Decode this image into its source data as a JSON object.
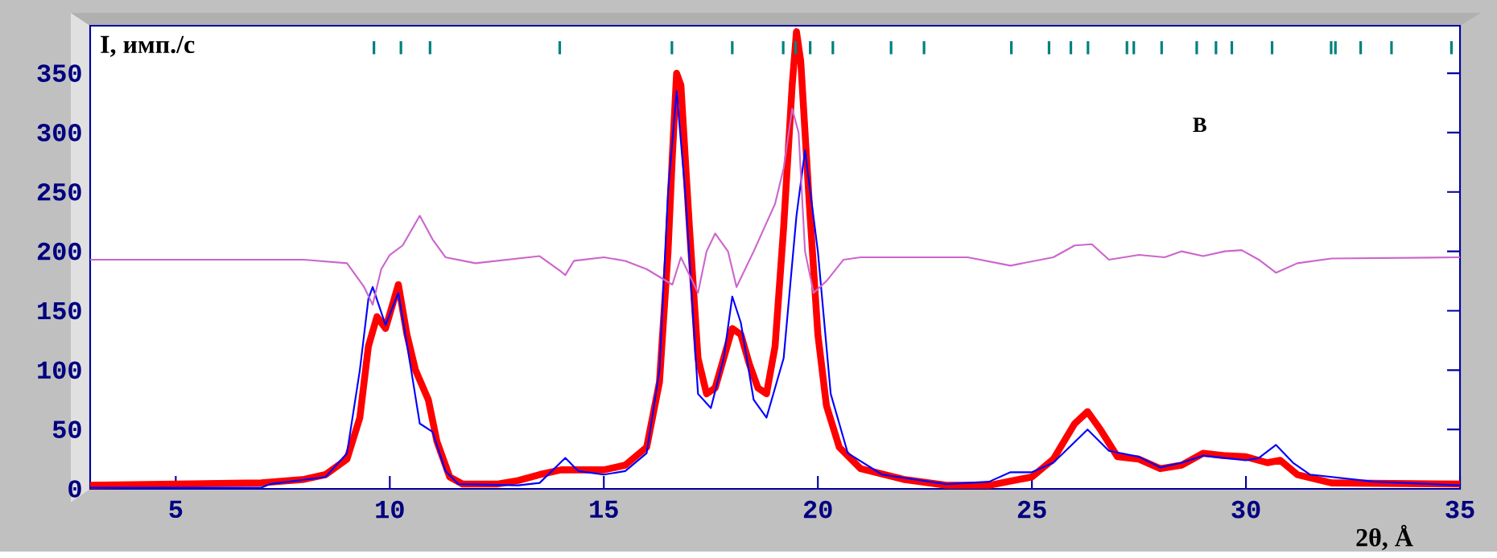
{
  "chart_data": {
    "type": "line",
    "xlabel": "2θ, Å",
    "ylabel": "I, имп./с",
    "xlim": [
      3,
      35
    ],
    "ylim": [
      0,
      390
    ],
    "xticks": [
      5,
      10,
      15,
      20,
      25,
      30,
      35
    ],
    "yticks": [
      0,
      50,
      100,
      150,
      200,
      250,
      300,
      350
    ],
    "annotations": [
      "В"
    ],
    "grid": false,
    "marker": "none",
    "line_style": "solid",
    "series": [
      {
        "color": "#ff0000",
        "x": [
          3,
          5,
          7,
          8,
          8.5,
          9,
          9.3,
          9.5,
          9.7,
          9.9,
          10.2,
          10.4,
          10.6,
          10.9,
          11.1,
          11.4,
          11.7,
          12.5,
          13,
          13.5,
          14,
          15,
          15.5,
          16,
          16.3,
          16.5,
          16.6,
          16.7,
          16.8,
          17.0,
          17.2,
          17.4,
          17.6,
          17.8,
          18.0,
          18.2,
          18.4,
          18.6,
          18.8,
          19.0,
          19.2,
          19.4,
          19.5,
          19.6,
          19.8,
          20.0,
          20.2,
          20.5,
          21,
          22,
          23,
          24,
          25,
          25.5,
          26,
          26.3,
          26.6,
          27,
          27.5,
          28,
          28.5,
          29,
          29.5,
          30,
          30.5,
          30.8,
          31.2,
          32,
          35
        ],
        "values": [
          3,
          4,
          5,
          8,
          12,
          25,
          60,
          120,
          145,
          135,
          172,
          130,
          100,
          75,
          40,
          10,
          4,
          4,
          7,
          12,
          16,
          16,
          20,
          35,
          90,
          200,
          280,
          350,
          340,
          220,
          110,
          80,
          85,
          110,
          135,
          130,
          105,
          85,
          80,
          120,
          220,
          340,
          385,
          360,
          240,
          130,
          70,
          35,
          17,
          8,
          3,
          3,
          10,
          25,
          55,
          65,
          50,
          27,
          25,
          17,
          20,
          30,
          28,
          27,
          22,
          24,
          12,
          5,
          4
        ]
      },
      {
        "color": "#0000ff",
        "x": [
          3,
          7,
          7.2,
          8.5,
          9,
          9.3,
          9.5,
          9.6,
          9.9,
          10.2,
          10.5,
          10.7,
          11.0,
          11.3,
          11.6,
          13,
          13.5,
          14.1,
          14.4,
          15,
          15.5,
          16,
          16.3,
          16.5,
          16.7,
          16.9,
          17.2,
          17.5,
          17.8,
          18.0,
          18.2,
          18.5,
          18.8,
          19.2,
          19.5,
          19.7,
          20.0,
          20.3,
          20.7,
          21.5,
          23,
          24,
          24.5,
          25,
          25.5,
          26.3,
          26.8,
          27.5,
          28,
          28.5,
          29,
          29.5,
          30,
          30.3,
          30.7,
          31.1,
          31.5,
          33,
          35
        ],
        "values": [
          1,
          1,
          4,
          10,
          30,
          100,
          160,
          170,
          138,
          165,
          100,
          55,
          48,
          15,
          4,
          3,
          5,
          26,
          15,
          12,
          15,
          30,
          100,
          250,
          335,
          250,
          80,
          68,
          110,
          162,
          140,
          75,
          60,
          110,
          230,
          285,
          200,
          80,
          30,
          12,
          4,
          6,
          14,
          14,
          22,
          50,
          32,
          27,
          18,
          22,
          28,
          26,
          24,
          26,
          37,
          22,
          12,
          6,
          3
        ]
      },
      {
        "color": "#cc66cc",
        "x": [
          3,
          8,
          9,
          9.4,
          9.6,
          9.8,
          10.0,
          10.3,
          10.7,
          11.0,
          11.3,
          12,
          13.5,
          14,
          14.1,
          14.3,
          15,
          15.5,
          16,
          16.6,
          16.8,
          17.0,
          17.2,
          17.4,
          17.6,
          17.9,
          18.1,
          18.5,
          19,
          19.2,
          19.4,
          19.55,
          19.7,
          19.9,
          20.2,
          20.6,
          21,
          23.5,
          24.5,
          25.5,
          26,
          26.4,
          26.8,
          27.5,
          28.1,
          28.5,
          29.0,
          29.5,
          29.9,
          30.3,
          30.7,
          31.2,
          32,
          35
        ],
        "values": [
          193,
          193,
          190,
          170,
          155,
          185,
          197,
          205,
          230,
          210,
          195,
          190,
          196,
          183,
          180,
          192,
          195,
          192,
          185,
          172,
          195,
          180,
          165,
          200,
          215,
          200,
          170,
          200,
          240,
          270,
          320,
          300,
          200,
          165,
          175,
          193,
          195,
          195,
          188,
          195,
          205,
          206,
          193,
          197,
          195,
          200,
          196,
          200,
          201,
          193,
          182,
          190,
          194,
          195
        ]
      },
      {
        "type": "bar",
        "color": "#008080",
        "x": [
          9.63,
          10.26,
          10.94,
          13.97,
          16.59,
          18.0,
          19.19,
          19.48,
          19.82,
          20.35,
          21.71,
          22.48,
          24.52,
          25.4,
          25.91,
          26.31,
          27.22,
          27.38,
          28.03,
          28.85,
          29.3,
          29.67,
          30.61,
          31.99,
          32.09,
          32.68,
          33.4,
          34.8
        ],
        "base": [
          366,
          366,
          366,
          366,
          366,
          366,
          366,
          366,
          366,
          366,
          366,
          366,
          366,
          366,
          366,
          366,
          366,
          366,
          366,
          366,
          366,
          366,
          366,
          366,
          366,
          366,
          366,
          366
        ],
        "values": [
          11,
          11,
          11,
          11,
          11,
          11,
          11,
          11,
          11,
          11,
          11,
          11,
          11,
          11,
          11,
          11,
          11,
          11,
          11,
          11,
          11,
          11,
          11,
          11,
          11,
          11,
          11,
          11
        ]
      }
    ]
  }
}
